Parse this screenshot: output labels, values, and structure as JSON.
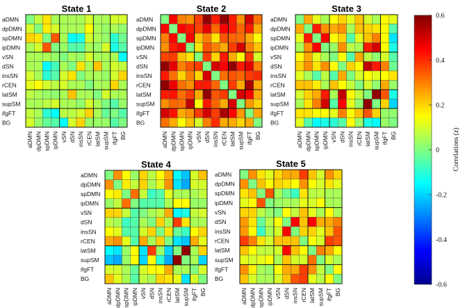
{
  "chart_data": {
    "type": "heatmap",
    "regions": [
      "aDMN",
      "dpDMN",
      "spDMN",
      "ipDMN",
      "vSN",
      "dSN",
      "insSN",
      "rCEN",
      "latSM",
      "supSM",
      "ifgFT",
      "BG"
    ],
    "colorbar": {
      "label": "Correlations (z)",
      "range": [
        -0.6,
        0.6
      ],
      "ticks": [
        "0.6",
        "0.4",
        "0.2",
        "0",
        "-0.2",
        "-0.4",
        "-0.6"
      ],
      "colormap": "jet"
    },
    "panels": [
      {
        "title": "State 1",
        "values": [
          [
            0,
            0.08,
            0.18,
            0.05,
            0.05,
            0.05,
            0.05,
            0.1,
            0.05,
            0.05,
            0.1,
            0.1
          ],
          [
            0.1,
            0,
            0.17,
            0.1,
            0.05,
            0.05,
            0.05,
            0.15,
            0.05,
            0.03,
            0.05,
            0.02
          ],
          [
            0.2,
            0.18,
            0,
            0.35,
            0.05,
            -0.15,
            -0.12,
            0.1,
            0.05,
            0.03,
            -0.1,
            -0.02
          ],
          [
            0.05,
            0.1,
            0.35,
            0,
            0.03,
            -0.05,
            -0.05,
            0.05,
            0.03,
            0.1,
            -0.12,
            -0.05
          ],
          [
            0.05,
            0.05,
            0.05,
            0.03,
            0,
            0.05,
            0.03,
            0.1,
            0.05,
            0.05,
            0.05,
            -0.15
          ],
          [
            0.05,
            0.05,
            -0.15,
            -0.07,
            0.05,
            0,
            0.18,
            0.05,
            0.22,
            0.05,
            0.1,
            0.08
          ],
          [
            0.1,
            0.05,
            -0.1,
            -0.05,
            0.1,
            0.18,
            0,
            0.05,
            0.05,
            0.03,
            0.1,
            0.2
          ],
          [
            0.12,
            0.15,
            0.1,
            0.07,
            0.1,
            0.05,
            0.05,
            0,
            0.05,
            0.05,
            0.2,
            0.05
          ],
          [
            0.07,
            0.05,
            0.03,
            0.02,
            0.05,
            0.22,
            0.05,
            0.05,
            0,
            0.1,
            0.05,
            0.05
          ],
          [
            0.05,
            0.05,
            0.07,
            0.1,
            0.05,
            0.05,
            0.02,
            0.1,
            0.05,
            0,
            -0.05,
            0.03
          ],
          [
            0.08,
            0.05,
            -0.1,
            -0.15,
            0.07,
            0.07,
            0.1,
            0.2,
            0.05,
            -0.03,
            0,
            -0.05
          ],
          [
            0.1,
            0.03,
            -0.03,
            -0.05,
            -0.15,
            0.1,
            0.2,
            0.03,
            0.03,
            0.03,
            -0.05,
            0
          ]
        ]
      },
      {
        "title": "State 2",
        "values": [
          [
            0,
            0.45,
            0.3,
            0.28,
            0.38,
            0.58,
            0.42,
            0.58,
            0.42,
            0.28,
            0.5,
            0.32
          ],
          [
            0.45,
            0,
            0.45,
            0.42,
            0.37,
            0.48,
            0.33,
            0.45,
            0.42,
            0.33,
            0.42,
            0.25
          ],
          [
            0.3,
            0.45,
            0,
            0.45,
            0.22,
            0.3,
            0.18,
            0.35,
            0.33,
            0.32,
            0.25,
            0.15
          ],
          [
            0.28,
            0.42,
            0.45,
            0,
            0.18,
            0.35,
            0.3,
            0.25,
            0.38,
            0.5,
            0.3,
            0.22
          ],
          [
            0.37,
            0.38,
            0.22,
            0.18,
            0,
            0.38,
            0.2,
            0.42,
            0.25,
            0.15,
            0.38,
            0.1
          ],
          [
            0.58,
            0.48,
            0.3,
            0.35,
            0.38,
            0,
            0.5,
            0.45,
            0.58,
            0.42,
            0.48,
            0.3
          ],
          [
            0.42,
            0.32,
            0.2,
            0.3,
            0.2,
            0.5,
            0,
            0.32,
            0.35,
            0.33,
            0.38,
            0.4
          ],
          [
            0.58,
            0.47,
            0.32,
            0.28,
            0.42,
            0.42,
            0.33,
            0,
            0.38,
            0.25,
            0.55,
            0.25
          ],
          [
            0.42,
            0.43,
            0.32,
            0.38,
            0.25,
            0.58,
            0.35,
            0.38,
            0,
            0.5,
            0.45,
            0.25
          ],
          [
            0.28,
            0.33,
            0.32,
            0.52,
            0.15,
            0.42,
            0.33,
            0.25,
            0.5,
            0,
            0.27,
            0.2
          ],
          [
            0.5,
            0.43,
            0.25,
            0.28,
            0.38,
            0.5,
            0.38,
            0.55,
            0.45,
            0.27,
            0,
            0.25
          ],
          [
            0.32,
            0.25,
            0.15,
            0.22,
            0.1,
            0.3,
            0.4,
            0.25,
            0.25,
            0.2,
            0.25,
            0
          ]
        ]
      },
      {
        "title": "State 3",
        "values": [
          [
            0,
            0.25,
            0.12,
            0.05,
            0.15,
            0.2,
            0.12,
            0.22,
            0.1,
            0.05,
            0.15,
            0.12
          ],
          [
            0.25,
            0,
            0.42,
            0.28,
            0.25,
            0.28,
            0.05,
            0.22,
            0.2,
            0.18,
            0.15,
            -0.05
          ],
          [
            0.12,
            0.42,
            0,
            0.45,
            0.15,
            0.2,
            -0.05,
            0.12,
            0.22,
            0.3,
            0.15,
            -0.18
          ],
          [
            0.05,
            0.28,
            0.45,
            0,
            0.03,
            0.28,
            0.07,
            0.05,
            0.42,
            0.5,
            0.15,
            -0.12
          ],
          [
            0.15,
            0.25,
            0.12,
            0.05,
            0,
            0.15,
            -0.05,
            0.25,
            0.07,
            0.02,
            0.1,
            -0.05
          ],
          [
            0.2,
            0.28,
            0.18,
            0.28,
            0.15,
            0,
            0.2,
            0.15,
            0.52,
            0.42,
            0.3,
            -0.02
          ],
          [
            0.12,
            0.05,
            -0.05,
            0.07,
            -0.05,
            0.25,
            0,
            0.1,
            0.15,
            0.12,
            0.15,
            0.18
          ],
          [
            0.22,
            0.22,
            0.17,
            0.05,
            0.22,
            0.15,
            0.08,
            0,
            0.1,
            0.02,
            0.25,
            0.03
          ],
          [
            0.1,
            0.2,
            0.25,
            0.42,
            0.05,
            0.52,
            0.15,
            0.08,
            0,
            0.58,
            0.35,
            -0.12
          ],
          [
            0.05,
            0.18,
            0.3,
            0.5,
            -0.05,
            0.45,
            0.12,
            0.02,
            0.58,
            0,
            0.2,
            -0.2
          ],
          [
            0.18,
            0.18,
            0.15,
            0.15,
            0.12,
            0.3,
            0.15,
            0.22,
            0.35,
            0.2,
            0.03,
            0.02
          ],
          [
            0.12,
            -0.05,
            -0.15,
            -0.12,
            -0.1,
            -0.05,
            0.15,
            0.03,
            -0.12,
            -0.15,
            0.03,
            0
          ]
        ]
      },
      {
        "title": "State 4",
        "values": [
          [
            0,
            0.28,
            0.15,
            0.03,
            0.2,
            0.07,
            0.15,
            0.25,
            -0.15,
            -0.22,
            0.1,
            0.22
          ],
          [
            0.28,
            0,
            0.17,
            0.08,
            0.2,
            0.05,
            0.12,
            0.28,
            -0.18,
            -0.25,
            0.1,
            0.1
          ],
          [
            0.15,
            0.17,
            0,
            0.32,
            0.08,
            -0.08,
            -0.05,
            0.12,
            0.05,
            0.05,
            0.05,
            0.08
          ],
          [
            0.03,
            0.08,
            0.32,
            0,
            -0.05,
            -0.05,
            -0.05,
            0.05,
            0.15,
            0.15,
            0.03,
            0.03
          ],
          [
            0.2,
            0.2,
            0.08,
            -0.05,
            0,
            0.05,
            0.08,
            0.25,
            -0.15,
            -0.12,
            0.08,
            0.1
          ],
          [
            0.07,
            0.05,
            -0.08,
            -0.05,
            0.05,
            0,
            0.2,
            0.05,
            0.38,
            0.18,
            0.05,
            0.05
          ],
          [
            0.15,
            0.12,
            -0.05,
            -0.05,
            0.1,
            0.2,
            0,
            0.18,
            -0.03,
            -0.08,
            0.15,
            0.2
          ],
          [
            0.25,
            0.28,
            0.12,
            -0.05,
            0.25,
            0.05,
            0.2,
            0,
            -0.18,
            -0.22,
            0.25,
            0.12
          ],
          [
            -0.15,
            -0.18,
            0.03,
            0.15,
            -0.18,
            0.38,
            0.03,
            -0.2,
            0,
            0.58,
            0.05,
            0.2
          ],
          [
            -0.22,
            -0.25,
            0.03,
            0.15,
            -0.2,
            0.15,
            -0.1,
            -0.25,
            0.58,
            0,
            0.05,
            -0.2
          ],
          [
            0.1,
            0.1,
            0.05,
            -0.03,
            0.1,
            0.15,
            0.15,
            0.25,
            0.05,
            0.05,
            0,
            0.1
          ],
          [
            0.22,
            0.12,
            0.05,
            -0.05,
            0.08,
            0.05,
            0.2,
            0.18,
            0.12,
            -0.18,
            0.1,
            0
          ]
        ]
      },
      {
        "title": "State 5",
        "values": [
          [
            0,
            0.28,
            0.18,
            0.12,
            0.2,
            0.25,
            0.25,
            0.38,
            0.22,
            0.1,
            0.28,
            0.2
          ],
          [
            0.28,
            0,
            0.22,
            0.15,
            0.2,
            0.18,
            0.15,
            0.28,
            0.15,
            0.1,
            0.18,
            0.12
          ],
          [
            0.18,
            0.22,
            0,
            0.35,
            0.05,
            -0.02,
            -0.08,
            0.18,
            0.07,
            0.08,
            0.05,
            0.05
          ],
          [
            0.12,
            0.15,
            0.35,
            0,
            0.03,
            0.05,
            0.05,
            0.12,
            0.1,
            0.15,
            0.05,
            0.05
          ],
          [
            0.2,
            0.2,
            0.07,
            0.03,
            0,
            0.15,
            0.08,
            0.22,
            0.12,
            0.05,
            0.15,
            0.05
          ],
          [
            0.27,
            0.18,
            -0.03,
            0.07,
            0.15,
            0,
            0.45,
            0.22,
            0.45,
            0.25,
            0.25,
            0.3
          ],
          [
            0.27,
            0.15,
            -0.08,
            0.05,
            0.1,
            0.45,
            0,
            0.2,
            0.2,
            0.12,
            0.22,
            0.35
          ],
          [
            0.38,
            0.3,
            0.18,
            0.1,
            0.22,
            0.22,
            0.22,
            0,
            0.15,
            0.1,
            0.38,
            0.35
          ],
          [
            0.22,
            0.15,
            0.08,
            0.08,
            0.1,
            0.45,
            0.22,
            0.15,
            0,
            0.3,
            0.25,
            0.15
          ],
          [
            0.12,
            0.1,
            0.12,
            0.15,
            0.05,
            0.22,
            0.1,
            0.1,
            0.32,
            0,
            0.1,
            0.05
          ],
          [
            0.28,
            0.17,
            0.05,
            0.03,
            0.15,
            0.25,
            0.25,
            0.38,
            0.28,
            0.08,
            0,
            0.15
          ],
          [
            0.22,
            0.1,
            0.05,
            0.05,
            0.1,
            0.22,
            0.35,
            0.38,
            0.12,
            0.07,
            0.15,
            0
          ]
        ]
      }
    ]
  }
}
